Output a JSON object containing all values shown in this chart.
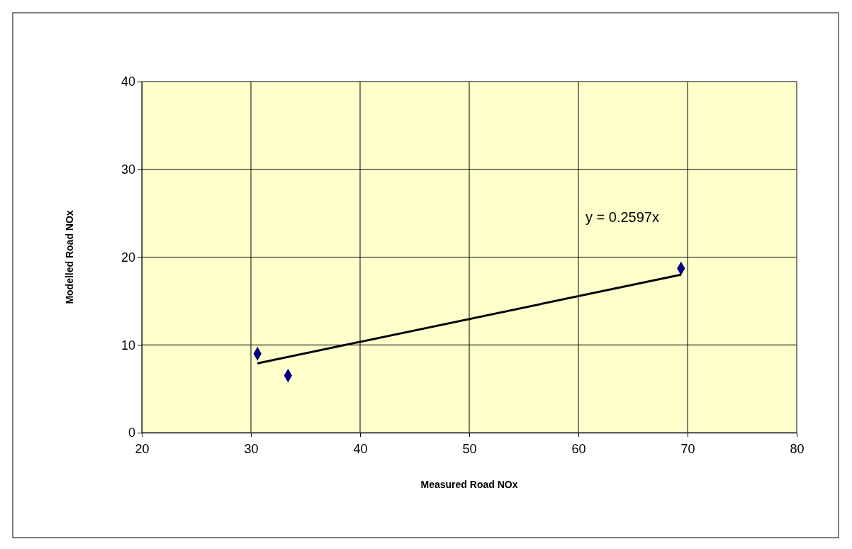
{
  "chart_data": {
    "type": "scatter",
    "xlabel": "Measured Road NOx",
    "ylabel": "Modelled Road NOx",
    "xlim": [
      20,
      80
    ],
    "xticks": [
      20,
      30,
      40,
      50,
      60,
      70,
      80
    ],
    "ylim": [
      0,
      40
    ],
    "yticks": [
      0,
      10,
      20,
      30,
      40
    ],
    "grid": true,
    "annotations": [
      "y = 0.2597x"
    ],
    "series": [
      {
        "color": "#000080",
        "marker": "diamond",
        "x": [
          30.6,
          33.4,
          69.4
        ],
        "values": [
          9.0,
          6.5,
          18.7
        ]
      },
      {
        "type": "line",
        "color": "#000000",
        "marker": "none",
        "line_style": "solid",
        "x": [
          30.6,
          69.4
        ],
        "values": [
          7.9,
          18.0
        ]
      }
    ]
  }
}
